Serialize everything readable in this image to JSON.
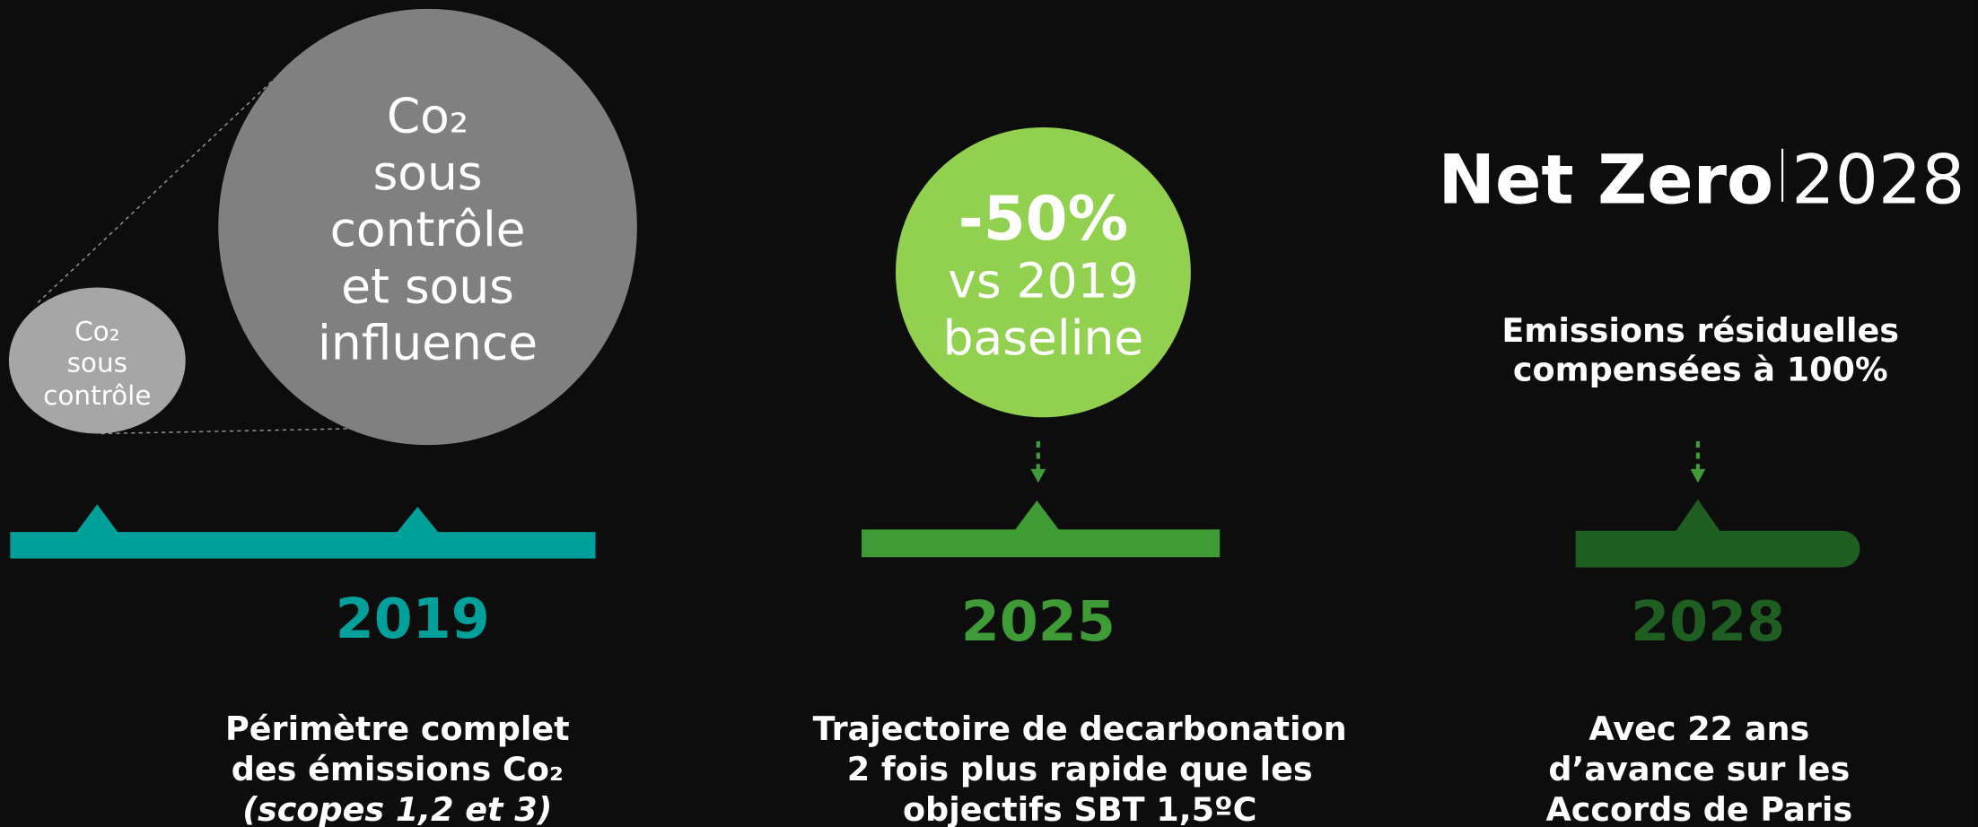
{
  "zoom": {
    "small": [
      "Co₂",
      "sous",
      "contrôle"
    ],
    "large": [
      "Co₂",
      "sous",
      "contrôle",
      "et sous",
      "influence"
    ]
  },
  "target_2025": {
    "value": "-50%",
    "lines": [
      "vs 2019",
      "baseline"
    ]
  },
  "net_zero": {
    "name": "Net Zero",
    "year": "2028",
    "note": [
      "Emissions résiduelles",
      "compensées à 100%"
    ]
  },
  "milestones": [
    {
      "year": "2019",
      "description": [
        "Périmètre complet",
        "des émissions Co₂",
        "(scopes 1,2 et 3)"
      ]
    },
    {
      "year": "2025",
      "description": [
        "Trajectoire de decarbonation",
        "2 fois plus rapide que les",
        "objectifs SBT 1,5ºC"
      ]
    },
    {
      "year": "2028",
      "description": [
        "Avec 22 ans",
        "d’avance sur les",
        "Accords de Paris"
      ]
    }
  ]
}
